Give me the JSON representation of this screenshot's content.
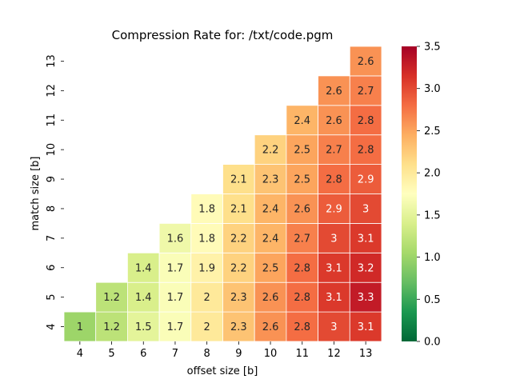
{
  "chart_data": {
    "type": "heatmap",
    "title": "Compression Rate for: /txt/code.pgm",
    "xlabel": "offset size [b]",
    "ylabel": "match size [b]",
    "x_categories": [
      "4",
      "5",
      "6",
      "7",
      "8",
      "9",
      "10",
      "11",
      "12",
      "13"
    ],
    "y_categories": [
      "4",
      "5",
      "6",
      "7",
      "8",
      "9",
      "10",
      "11",
      "12",
      "13"
    ],
    "colormap": "RdYlGn_r",
    "vmin": 0.0,
    "vmax": 3.5,
    "colorbar_ticks": [
      "0.0",
      "0.5",
      "1.0",
      "1.5",
      "2.0",
      "2.5",
      "3.0",
      "3.5"
    ],
    "rows": [
      {
        "y": "4",
        "values": [
          "1",
          "1.2",
          "1.5",
          "1.7",
          "2",
          "2.3",
          "2.6",
          "2.8",
          "3",
          "3.1"
        ]
      },
      {
        "y": "5",
        "values": [
          null,
          "1.2",
          "1.4",
          "1.7",
          "2",
          "2.3",
          "2.6",
          "2.8",
          "3.1",
          "3.3"
        ]
      },
      {
        "y": "6",
        "values": [
          null,
          null,
          "1.4",
          "1.7",
          "1.9",
          "2.2",
          "2.5",
          "2.8",
          "3.1",
          "3.2"
        ]
      },
      {
        "y": "7",
        "values": [
          null,
          null,
          null,
          "1.6",
          "1.8",
          "2.2",
          "2.4",
          "2.7",
          "3",
          "3.1"
        ]
      },
      {
        "y": "8",
        "values": [
          null,
          null,
          null,
          null,
          "1.8",
          "2.1",
          "2.4",
          "2.6",
          "2.9",
          "3"
        ]
      },
      {
        "y": "9",
        "values": [
          null,
          null,
          null,
          null,
          null,
          "2.1",
          "2.3",
          "2.5",
          "2.8",
          "2.9"
        ]
      },
      {
        "y": "10",
        "values": [
          null,
          null,
          null,
          null,
          null,
          null,
          "2.2",
          "2.5",
          "2.7",
          "2.8"
        ]
      },
      {
        "y": "11",
        "values": [
          null,
          null,
          null,
          null,
          null,
          null,
          null,
          "2.4",
          "2.6",
          "2.8"
        ]
      },
      {
        "y": "12",
        "values": [
          null,
          null,
          null,
          null,
          null,
          null,
          null,
          null,
          "2.6",
          "2.7"
        ]
      },
      {
        "y": "13",
        "values": [
          null,
          null,
          null,
          null,
          null,
          null,
          null,
          null,
          null,
          "2.6"
        ]
      }
    ]
  }
}
